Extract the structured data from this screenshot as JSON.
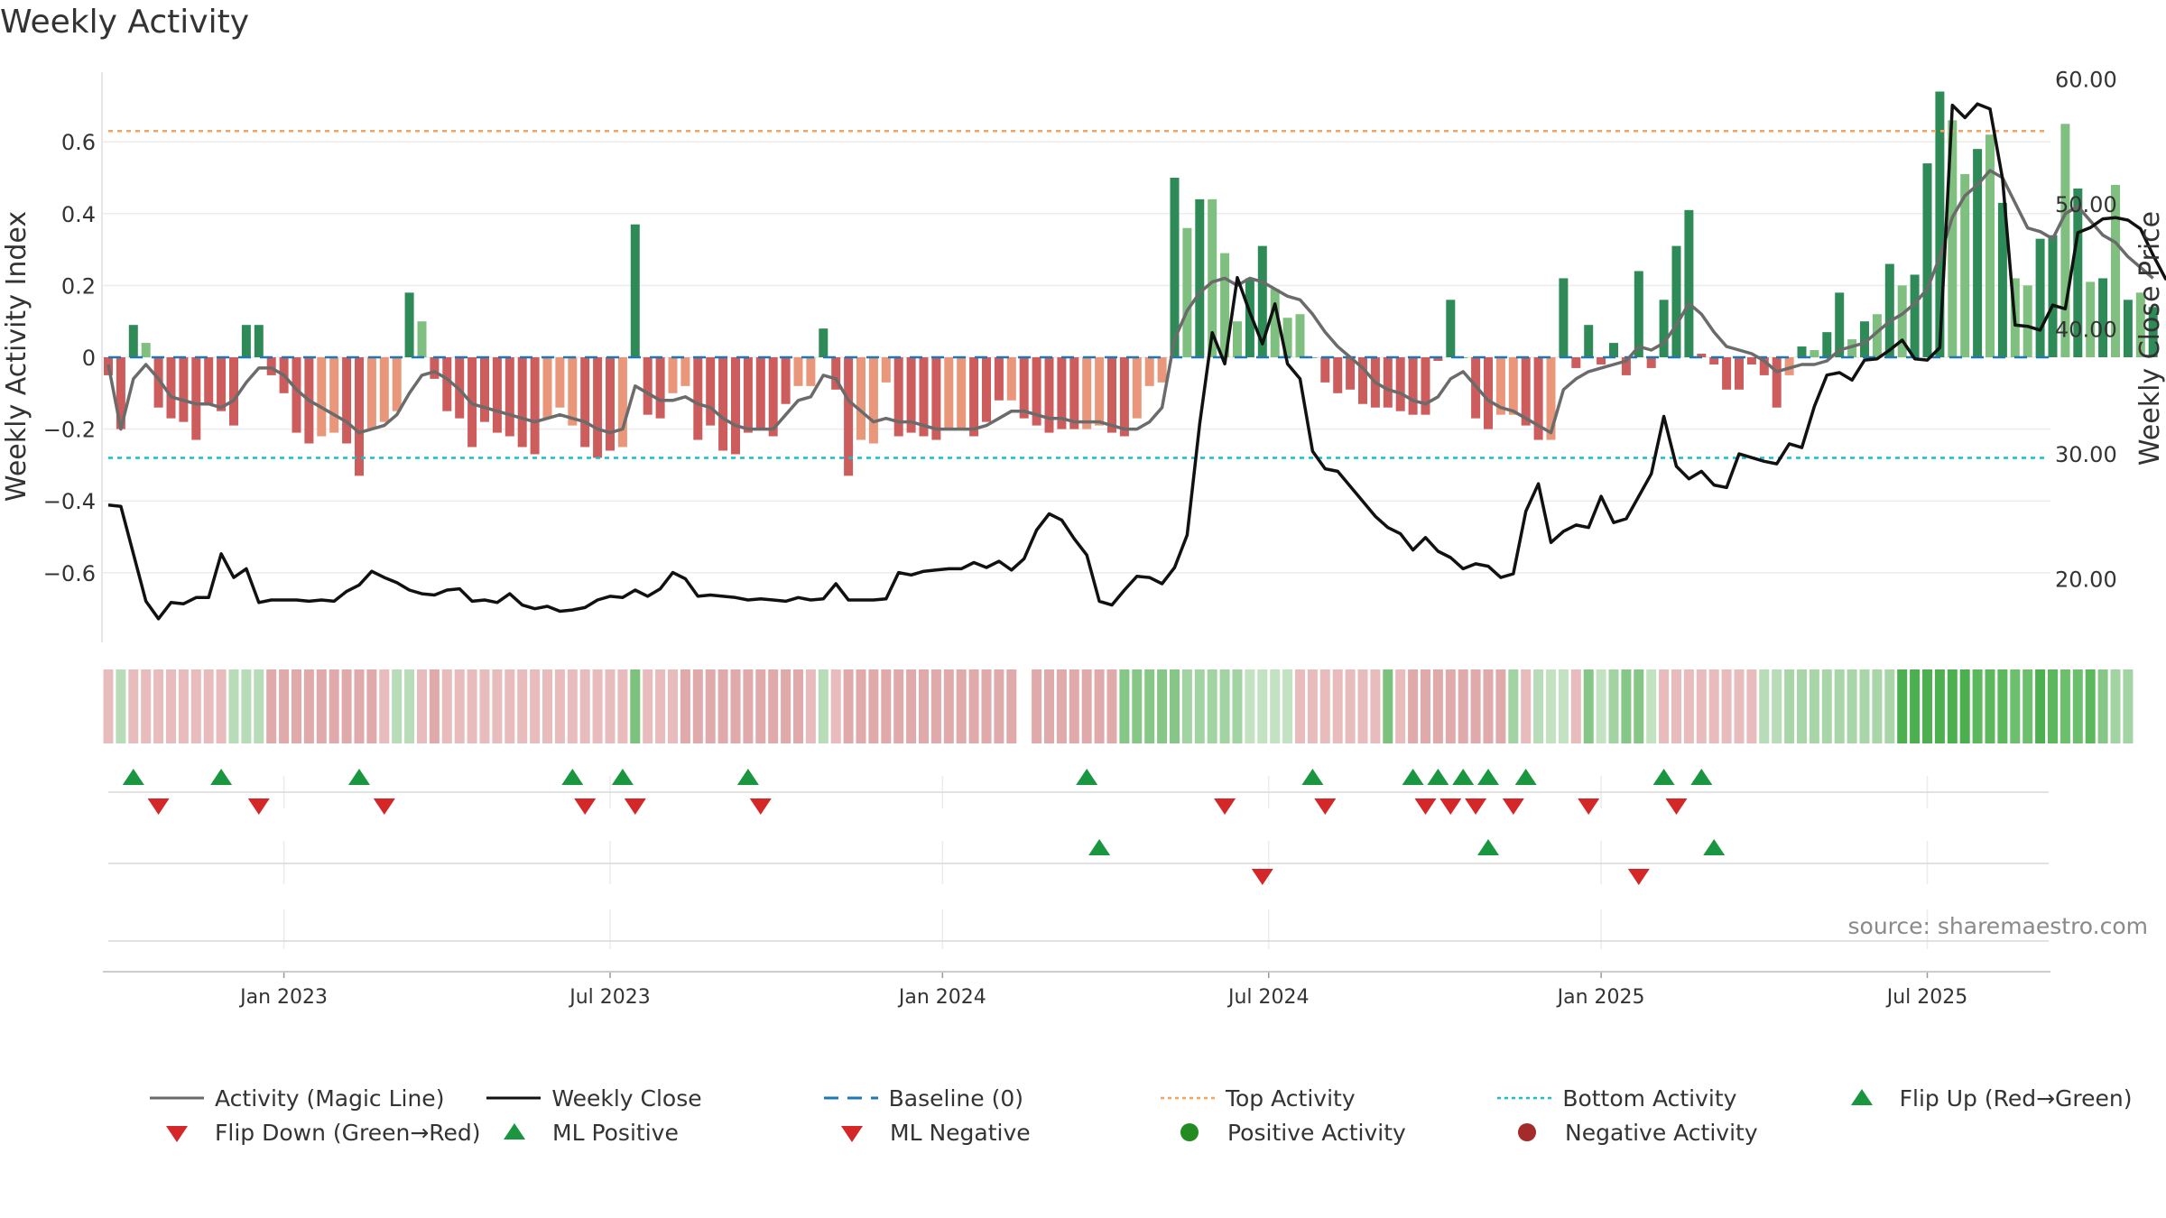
{
  "title": "Weekly Activity",
  "source": "source: sharemaestro.com",
  "legend": {
    "magic_line": "Activity (Magic Line)",
    "weekly_close": "Weekly Close",
    "baseline": "Baseline (0)",
    "top_activity": "Top Activity",
    "bottom_activity": "Bottom Activity",
    "flip_up": "Flip Up (Red→Green)",
    "flip_down": "Flip Down (Green→Red)",
    "ml_positive": "ML Positive",
    "ml_negative": "ML Negative",
    "positive_activity": "Positive Activity",
    "negative_activity": "Negative Activity"
  },
  "colors": {
    "magic_line": "#6b6b6b",
    "weekly_close": "#111111",
    "baseline": "#1f77b4",
    "top_activity": "#f4a460",
    "bottom_activity": "#17becf",
    "green_dark": "#2e8b57",
    "green_light": "#7fbf7f",
    "red_dark": "#cd5c5c",
    "red_light": "#e9967a",
    "marker_up": "#1a9641",
    "marker_down": "#d62728",
    "positive_dot": "#228b22",
    "negative_dot": "#a52a2a"
  },
  "chart_data": {
    "type": "bar",
    "title": "Weekly Activity",
    "xlabel": "",
    "ylabel": "Weekly Activity Index",
    "y2label": "Weekly Close Price",
    "ylim": [
      -0.78,
      0.78
    ],
    "y2lim": [
      15.0,
      60.0
    ],
    "yticks": [
      0.6,
      0.4,
      0.2,
      0,
      -0.2,
      -0.4,
      -0.6
    ],
    "ytick_labels": [
      "0.6",
      "0.4",
      "0.2",
      "0",
      "−0.2",
      "−0.4",
      "−0.6"
    ],
    "y2ticks": [
      60,
      50,
      40,
      30,
      20
    ],
    "y2tick_labels": [
      "60.00",
      "50.00",
      "40.00",
      "30.00",
      "20.00"
    ],
    "top_activity": 0.63,
    "bottom_activity": -0.28,
    "baseline": 0,
    "week_start": "2022-09-19",
    "weeks": 158,
    "x_ticks": [
      {
        "label": "Jan 2023",
        "week": 14
      },
      {
        "label": "Jul 2023",
        "week": 40
      },
      {
        "label": "Jan 2024",
        "week": 66.5
      },
      {
        "label": "Jul 2024",
        "week": 92.5
      },
      {
        "label": "Jan 2025",
        "week": 119
      },
      {
        "label": "Jul 2025",
        "week": 145
      }
    ],
    "activity": [
      -0.05,
      -0.2,
      0.09,
      0.04,
      -0.14,
      -0.17,
      -0.18,
      -0.23,
      -0.13,
      -0.15,
      -0.19,
      0.09,
      0.09,
      -0.05,
      -0.1,
      -0.21,
      -0.24,
      -0.22,
      -0.21,
      -0.24,
      -0.33,
      -0.2,
      -0.18,
      -0.15,
      0.18,
      0.1,
      -0.06,
      -0.15,
      -0.17,
      -0.25,
      -0.18,
      -0.21,
      -0.22,
      -0.25,
      -0.27,
      -0.17,
      -0.14,
      -0.19,
      -0.25,
      -0.28,
      -0.26,
      -0.25,
      0.37,
      -0.16,
      -0.17,
      -0.1,
      -0.08,
      -0.23,
      -0.19,
      -0.26,
      -0.27,
      -0.21,
      -0.2,
      -0.22,
      -0.13,
      -0.08,
      -0.08,
      0.08,
      -0.09,
      -0.33,
      -0.23,
      -0.24,
      -0.07,
      -0.22,
      -0.21,
      -0.22,
      -0.23,
      -0.2,
      -0.2,
      -0.22,
      -0.18,
      -0.12,
      -0.12,
      -0.17,
      -0.19,
      -0.21,
      -0.2,
      -0.2,
      -0.2,
      -0.19,
      -0.21,
      -0.22,
      -0.17,
      -0.08,
      -0.07,
      0.5,
      0.36,
      0.44,
      0.44,
      0.29,
      0.1,
      0.22,
      0.31,
      0.19,
      0.11,
      0.12,
      0,
      -0.07,
      -0.1,
      -0.09,
      -0.13,
      -0.14,
      -0.14,
      -0.15,
      -0.16,
      -0.16,
      -0.01,
      0.16,
      0,
      -0.17,
      -0.2,
      -0.16,
      -0.16,
      -0.19,
      -0.23,
      -0.23,
      0.22,
      -0.03,
      0.09,
      -0.02,
      0.04,
      -0.05,
      0.24,
      -0.03,
      0.16,
      0.31,
      0.41,
      0.01,
      -0.02,
      -0.09,
      -0.09,
      -0.02,
      -0.05,
      -0.14,
      -0.05,
      0.03,
      0.02,
      0.07,
      0.18,
      0.05,
      0.1,
      0.12,
      0.26,
      0.2,
      0.23,
      0.54,
      0.74,
      0.66,
      0.51,
      0.58,
      0.62,
      0.43,
      0.22,
      0.2,
      0.33,
      0.34,
      0.65,
      0.47,
      0.21,
      0.22,
      0.48,
      0.16,
      0.18,
      0.14
    ],
    "activity_style": [
      "rd",
      "rd",
      "gd",
      "gl",
      "rd",
      "rd",
      "rd",
      "rd",
      "rd",
      "rd",
      "rd",
      "gd",
      "gd",
      "rd",
      "rd",
      "rd",
      "rd",
      "rl",
      "rl",
      "rd",
      "rd",
      "rl",
      "rl",
      "rl",
      "gd",
      "gl",
      "rd",
      "rd",
      "rd",
      "rd",
      "rd",
      "rd",
      "rd",
      "rd",
      "rd",
      "rl",
      "rl",
      "rl",
      "rd",
      "rd",
      "rd",
      "rl",
      "gd",
      "rd",
      "rd",
      "rl",
      "rl",
      "rd",
      "rd",
      "rd",
      "rd",
      "rd",
      "rd",
      "rd",
      "rd",
      "rl",
      "rl",
      "gd",
      "rd",
      "rd",
      "rl",
      "rl",
      "rl",
      "rd",
      "rd",
      "rd",
      "rd",
      "rl",
      "rl",
      "rd",
      "rd",
      "rd",
      "rl",
      "rd",
      "rd",
      "rd",
      "rd",
      "rd",
      "rl",
      "rl",
      "rd",
      "rd",
      "rl",
      "rl",
      "rl",
      "gd",
      "gl",
      "gd",
      "gl",
      "gl",
      "gl",
      "gd",
      "gd",
      "gl",
      "gl",
      "gl",
      "gl",
      "rd",
      "rd",
      "rd",
      "rd",
      "rd",
      "rd",
      "rd",
      "rd",
      "rd",
      "rd",
      "gd",
      "gl",
      "rd",
      "rd",
      "rl",
      "rl",
      "rd",
      "rd",
      "rl",
      "gd",
      "rd",
      "gd",
      "rd",
      "gd",
      "rd",
      "gd",
      "rd",
      "gd",
      "gd",
      "gd",
      "rd",
      "rd",
      "rd",
      "rd",
      "rd",
      "rd",
      "rd",
      "rl",
      "gd",
      "gl",
      "gd",
      "gd",
      "gl",
      "gd",
      "gl",
      "gd",
      "gl",
      "gd",
      "gd",
      "gd",
      "gl",
      "gl",
      "gd",
      "gl",
      "gd",
      "gl",
      "gl",
      "gd",
      "gd",
      "gl",
      "gd",
      "gl",
      "gd",
      "gl",
      "gd",
      "gl",
      "gd"
    ],
    "magic_line": [
      -0.02,
      -0.2,
      -0.06,
      -0.02,
      -0.06,
      -0.11,
      -0.12,
      -0.13,
      -0.13,
      -0.14,
      -0.12,
      -0.07,
      -0.03,
      -0.03,
      -0.05,
      -0.09,
      -0.12,
      -0.14,
      -0.16,
      -0.18,
      -0.21,
      -0.2,
      -0.19,
      -0.16,
      -0.1,
      -0.05,
      -0.04,
      -0.06,
      -0.09,
      -0.13,
      -0.14,
      -0.15,
      -0.16,
      -0.17,
      -0.18,
      -0.17,
      -0.16,
      -0.17,
      -0.18,
      -0.2,
      -0.21,
      -0.2,
      -0.08,
      -0.1,
      -0.12,
      -0.12,
      -0.11,
      -0.13,
      -0.14,
      -0.17,
      -0.19,
      -0.2,
      -0.2,
      -0.2,
      -0.16,
      -0.12,
      -0.11,
      -0.05,
      -0.06,
      -0.12,
      -0.15,
      -0.18,
      -0.17,
      -0.18,
      -0.18,
      -0.19,
      -0.2,
      -0.2,
      -0.2,
      -0.2,
      -0.19,
      -0.17,
      -0.15,
      -0.15,
      -0.16,
      -0.17,
      -0.17,
      -0.18,
      -0.18,
      -0.18,
      -0.19,
      -0.2,
      -0.2,
      -0.18,
      -0.14,
      0.05,
      0.13,
      0.18,
      0.21,
      0.22,
      0.2,
      0.22,
      0.21,
      0.19,
      0.17,
      0.16,
      0.12,
      0.07,
      0.03,
      0,
      -0.03,
      -0.07,
      -0.09,
      -0.1,
      -0.12,
      -0.13,
      -0.11,
      -0.06,
      -0.04,
      -0.08,
      -0.12,
      -0.14,
      -0.15,
      -0.17,
      -0.19,
      -0.21,
      -0.09,
      -0.06,
      -0.04,
      -0.03,
      -0.02,
      -0.01,
      0.03,
      0.02,
      0.04,
      0.09,
      0.15,
      0.12,
      0.07,
      0.03,
      0.02,
      0.01,
      -0.01,
      -0.04,
      -0.03,
      -0.02,
      -0.02,
      -0.01,
      0.02,
      0.03,
      0.04,
      0.07,
      0.1,
      0.12,
      0.15,
      0.19,
      0.28,
      0.39,
      0.45,
      0.48,
      0.52,
      0.5,
      0.43,
      0.36,
      0.35,
      0.33,
      0.4,
      0.42,
      0.38,
      0.34,
      0.32,
      0.28,
      0.25,
      0.22
    ],
    "weekly_close": [
      25.9,
      25.8,
      22.0,
      18.2,
      16.8,
      18.1,
      18.0,
      18.5,
      18.5,
      22.0,
      20.1,
      20.8,
      18.1,
      18.3,
      18.3,
      18.3,
      18.2,
      18.3,
      18.2,
      19.0,
      19.5,
      20.6,
      20.1,
      19.7,
      19.1,
      18.8,
      18.7,
      19.1,
      19.2,
      18.2,
      18.3,
      18.1,
      18.8,
      17.9,
      17.6,
      17.8,
      17.4,
      17.5,
      17.7,
      18.3,
      18.6,
      18.5,
      19.1,
      18.6,
      19.2,
      20.5,
      20.0,
      18.6,
      18.7,
      18.6,
      18.5,
      18.3,
      18.4,
      18.3,
      18.2,
      18.5,
      18.3,
      18.4,
      19.6,
      18.3,
      18.3,
      18.3,
      18.4,
      20.5,
      20.3,
      20.6,
      20.7,
      20.8,
      20.8,
      21.3,
      20.9,
      21.4,
      20.7,
      21.6,
      23.9,
      25.2,
      24.7,
      23.2,
      21.9,
      18.2,
      17.9,
      19.1,
      20.2,
      20.1,
      19.6,
      20.9,
      23.5,
      32.4,
      39.7,
      37.2,
      44.1,
      41.3,
      38.8,
      42.0,
      37.2,
      36.0,
      30.2,
      28.8,
      28.6,
      27.4,
      26.2,
      25.0,
      24.1,
      23.6,
      22.3,
      23.3,
      22.2,
      21.7,
      20.8,
      21.2,
      21.0,
      20.1,
      20.4,
      25.4,
      27.6,
      22.9,
      23.8,
      24.3,
      24.1,
      26.6,
      24.5,
      24.8,
      26.6,
      28.4,
      33.0,
      29.0,
      28.0,
      28.6,
      27.5,
      27.3,
      30.0,
      29.7,
      29.4,
      29.2,
      30.8,
      30.5,
      33.8,
      36.3,
      36.5,
      35.9,
      37.5,
      37.6,
      38.3,
      39.1,
      37.6,
      37.5,
      38.5,
      57.9,
      56.9,
      58.0,
      57.6,
      52.0,
      40.3,
      40.2,
      39.9,
      41.9,
      41.6,
      47.7,
      48.1,
      48.8,
      48.9,
      48.7,
      48.0,
      45.9,
      44.0,
      45.0
    ],
    "strip_color": [
      "#e8bcbc",
      "#b8dbb8",
      "#e8bcbc",
      "#e8bcbc",
      "#e8bcbc",
      "#e8bcbc",
      "#e8bcbc",
      "#e8bcbc",
      "#e8bcbc",
      "#e8bcbc",
      "#b8dbb8",
      "#b8dbb8",
      "#b8dbb8",
      "#e0aaaa",
      "#e0aaaa",
      "#e0aaaa",
      "#e0aaaa",
      "#e0aaaa",
      "#e0aaaa",
      "#e0aaaa",
      "#e0aaaa",
      "#e0aaaa",
      "#e8bcbc",
      "#b8dbb8",
      "#b8dbb8",
      "#e8bcbc",
      "#e0aaaa",
      "#e8bcbc",
      "#e8bcbc",
      "#e8bcbc",
      "#e8bcbc",
      "#e8bcbc",
      "#e8bcbc",
      "#e8bcbc",
      "#e8bcbc",
      "#e8bcbc",
      "#e8bcbc",
      "#e8bcbc",
      "#e8bcbc",
      "#e8bcbc",
      "#e8bcbc",
      "#e8bcbc",
      "#7cc27c",
      "#e8bcbc",
      "#e8bcbc",
      "#e8bcbc",
      "#e0aaaa",
      "#e0aaaa",
      "#e0aaaa",
      "#e0aaaa",
      "#e0aaaa",
      "#e0aaaa",
      "#e0aaaa",
      "#e0aaaa",
      "#e0aaaa",
      "#e0aaaa",
      "#e8bcbc",
      "#b8dbb8",
      "#e8bcbc",
      "#e0aaaa",
      "#e0aaaa",
      "#e0aaaa",
      "#e0aaaa",
      "#e0aaaa",
      "#e0aaaa",
      "#e0aaaa",
      "#e0aaaa",
      "#e0aaaa",
      "#e0aaaa",
      "#e0aaaa",
      "#e0aaaa",
      "#e0aaaa",
      "#e0aaaa",
      "#ffffff",
      "#e0aaaa",
      "#e0aaaa",
      "#e0aaaa",
      "#e0aaaa",
      "#e0aaaa",
      "#e0aaaa",
      "#e0aaaa",
      "#86c686",
      "#86c686",
      "#86c686",
      "#86c686",
      "#86c686",
      "#a2d3a2",
      "#a2d3a2",
      "#a2d3a2",
      "#a2d3a2",
      "#a2d3a2",
      "#c2e2c2",
      "#c2e2c2",
      "#c2e2c2",
      "#c2e2c2",
      "#e8bcbc",
      "#e8bcbc",
      "#e8bcbc",
      "#e8bcbc",
      "#e8bcbc",
      "#e8bcbc",
      "#e8bcbc",
      "#7cc27c",
      "#e8bcbc",
      "#e0aaaa",
      "#e0aaaa",
      "#e0aaaa",
      "#e0aaaa",
      "#e0aaaa",
      "#e0aaaa",
      "#e0aaaa",
      "#e0aaaa",
      "#a2d3a2",
      "#e8bcbc",
      "#b8dbb8",
      "#c2e2c2",
      "#c2e2c2",
      "#e8bcbc",
      "#86c686",
      "#c2e2c2",
      "#a2d3a2",
      "#86c686",
      "#86c686",
      "#c2e2c2",
      "#e8bcbc",
      "#e8bcbc",
      "#e8bcbc",
      "#e8bcbc",
      "#e8bcbc",
      "#e8bcbc",
      "#e8bcbc",
      "#e8bcbc",
      "#b8dbb8",
      "#b8dbb8",
      "#a8d6a8",
      "#a8d6a8",
      "#a8d6a8",
      "#a8d6a8",
      "#a8d6a8",
      "#a8d6a8",
      "#a8d6a8",
      "#a8d6a8",
      "#a8d6a8",
      "#4caf50",
      "#4caf50",
      "#4caf50",
      "#4caf50",
      "#4caf50",
      "#4caf50",
      "#5cb85c",
      "#5cb85c",
      "#5cb85c",
      "#6cbf6c",
      "#6cbf6c",
      "#4caf50",
      "#5cb85c",
      "#6cbf6c",
      "#6cbf6c",
      "#5cb85c",
      "#86c686",
      "#a2d3a2",
      "#a2d3a2"
    ],
    "flip_up_weeks": [
      2,
      9,
      20,
      37,
      41,
      51,
      78,
      96,
      104,
      106,
      108,
      110,
      113,
      124,
      127
    ],
    "flip_down_weeks": [
      4,
      12,
      22,
      38,
      42,
      52,
      89,
      97,
      105,
      107,
      109,
      112,
      118,
      125
    ],
    "ml_positive_weeks": [
      79,
      110,
      128
    ],
    "ml_negative_weeks": [
      92,
      122
    ],
    "positive_activity_weeks": [],
    "negative_activity_weeks": []
  }
}
